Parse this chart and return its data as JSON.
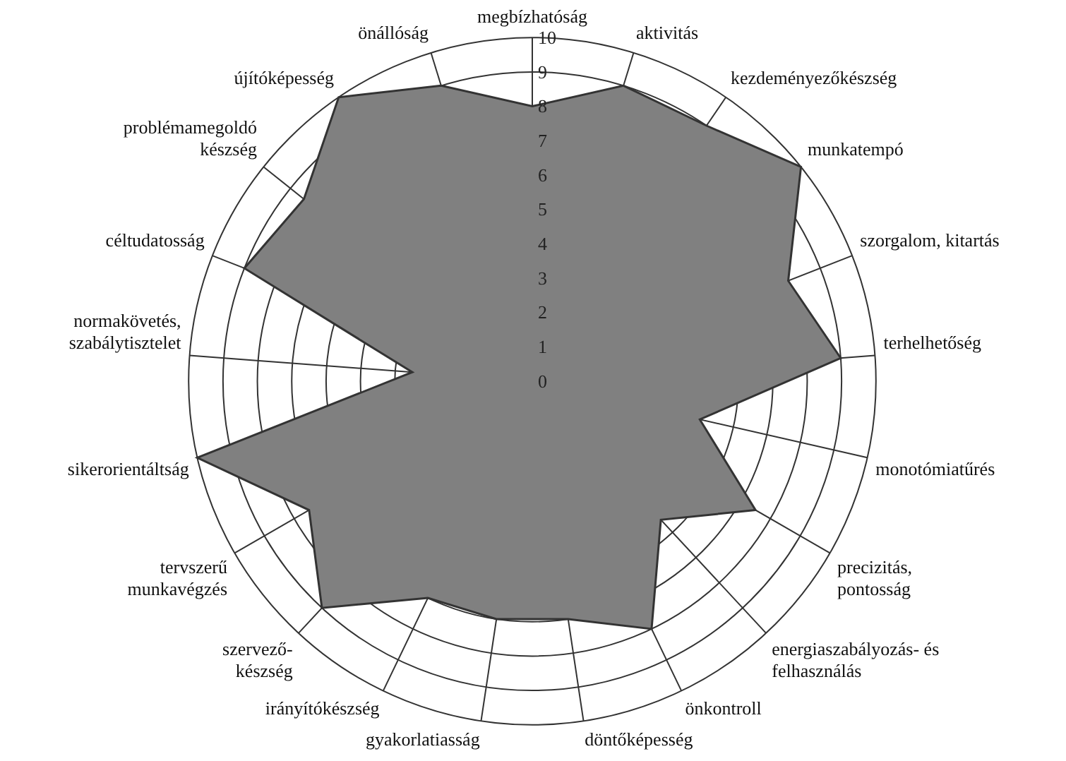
{
  "chart_data": {
    "type": "radar",
    "categories": [
      "megbízhatóság",
      "aktivitás",
      "kezdeményezőkészség",
      "munkatempó",
      "szorgalom, kitartás",
      "terhelhetőség",
      "monotómiatűrés",
      "precizitás,\npontosság",
      "energiaszabályozás- és\nfelhasználás",
      "önkontroll",
      "döntőképesség",
      "gyakorlatiasság",
      "irányítókészség",
      "szervező-\nkészség",
      "tervszerű\nmunkavégzés",
      "sikerorientáltság",
      "normakövetés,\nszabálytisztelet",
      "céltudatosság",
      "problémamegoldó\nkészség",
      "újítóképesség",
      "önállóság"
    ],
    "series": [
      {
        "color": "#808080",
        "values": [
          8,
          9,
          9,
          10,
          8,
          9,
          5,
          7.5,
          5.5,
          8,
          7,
          7,
          7,
          9,
          7.5,
          10,
          3.5,
          9,
          8.5,
          10,
          9
        ]
      }
    ],
    "ylim": [
      0,
      10
    ],
    "yticks": [
      0,
      1,
      2,
      3,
      4,
      5,
      6,
      7,
      8,
      9,
      10
    ],
    "grid": true,
    "legend": false,
    "marker": "none"
  }
}
